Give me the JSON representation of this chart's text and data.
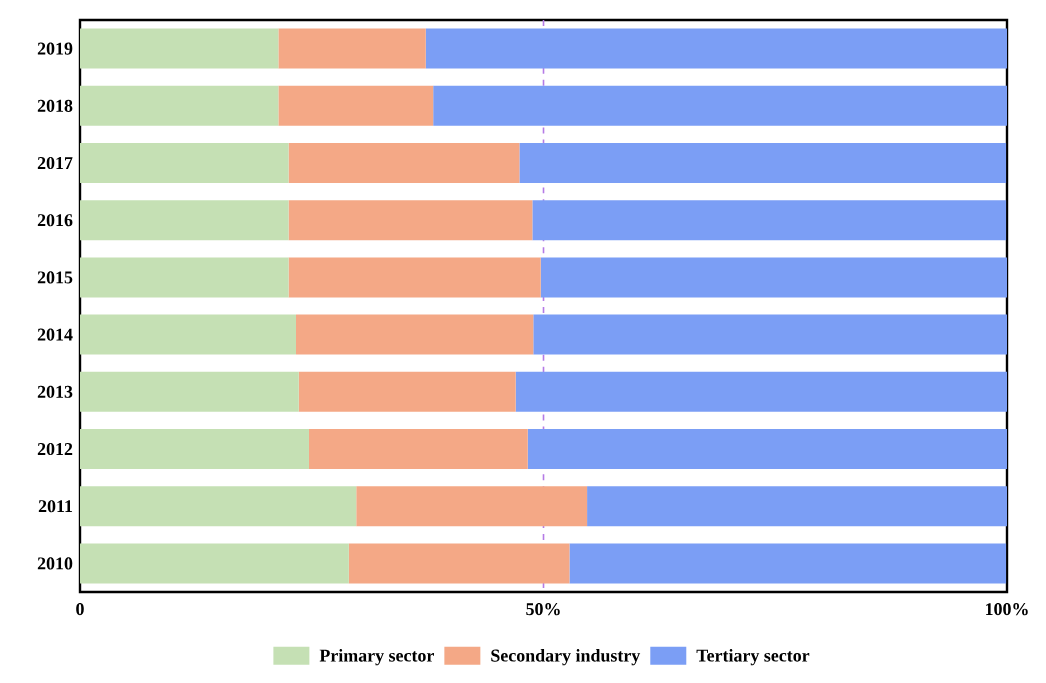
{
  "chart_data": {
    "type": "bar",
    "orientation": "horizontal",
    "stacked": true,
    "categories": [
      "2019",
      "2018",
      "2017",
      "2016",
      "2015",
      "2014",
      "2013",
      "2012",
      "2011",
      "2010"
    ],
    "series": [
      {
        "name": "Primary sector",
        "color": "#c5e0b4",
        "values": [
          21.4,
          21.4,
          22.5,
          22.5,
          22.5,
          23.3,
          23.6,
          24.7,
          29.8,
          29.0
        ]
      },
      {
        "name": "Secondary industry",
        "color": "#f4a886",
        "values": [
          15.9,
          16.7,
          24.9,
          26.3,
          27.2,
          25.6,
          23.4,
          23.6,
          24.9,
          23.8
        ]
      },
      {
        "name": "Tertiary sector",
        "color": "#7b9ef5",
        "values": [
          62.7,
          61.9,
          52.5,
          51.1,
          50.4,
          51.1,
          53.0,
          51.7,
          45.3,
          47.1
        ]
      }
    ],
    "xlim": [
      0,
      100
    ],
    "xticks": [
      0,
      {
        "value": 50,
        "label": "50%"
      },
      {
        "value": 100,
        "label": "100%"
      }
    ],
    "ref_lines": [
      {
        "axis": "x",
        "value": 50,
        "color": "#b57be6",
        "line_style": "dashed"
      }
    ],
    "grid": false,
    "legend": "bottom"
  }
}
